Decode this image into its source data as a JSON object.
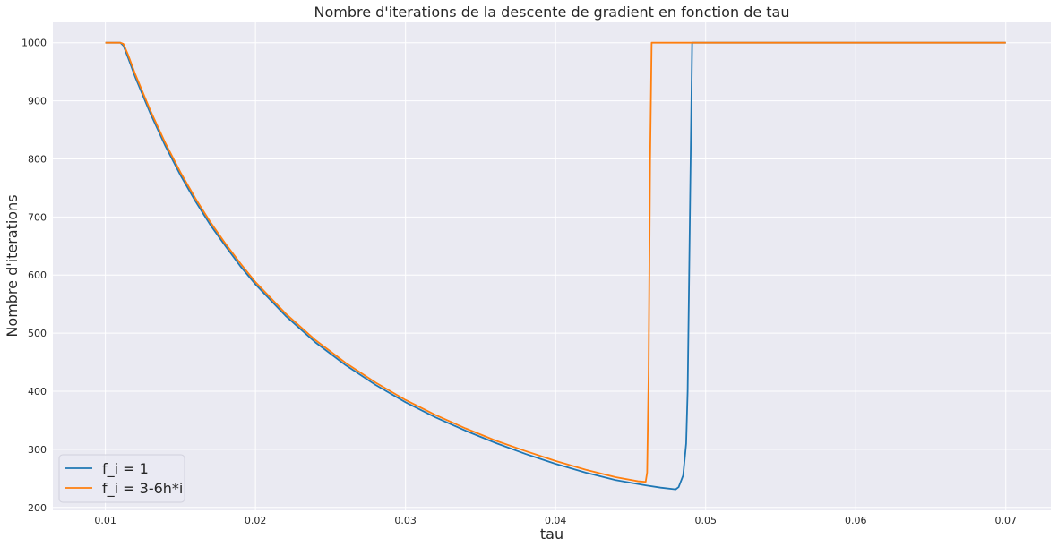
{
  "chart_data": {
    "type": "line",
    "title": "Nombre d'iterations de la descente de gradient en fonction de tau",
    "xlabel": "tau",
    "ylabel": "Nombre d'iterations",
    "xlim": [
      0.0065,
      0.073
    ],
    "ylim": [
      195,
      1035
    ],
    "xticks": [
      0.01,
      0.02,
      0.03,
      0.04,
      0.05,
      0.06,
      0.07
    ],
    "xtick_labels": [
      "0.01",
      "0.02",
      "0.03",
      "0.04",
      "0.05",
      "0.06",
      "0.07"
    ],
    "yticks": [
      200,
      300,
      400,
      500,
      600,
      700,
      800,
      900,
      1000
    ],
    "ytick_labels": [
      "200",
      "300",
      "400",
      "500",
      "600",
      "700",
      "800",
      "900",
      "1000"
    ],
    "grid": true,
    "background": "#eaeaf2",
    "grid_color": "#ffffff",
    "legend_position": "lower-left",
    "series": [
      {
        "name": "f_i = 1",
        "color": "#1f77b4",
        "x": [
          0.01,
          0.0105,
          0.011,
          0.0112,
          0.0115,
          0.012,
          0.013,
          0.014,
          0.015,
          0.016,
          0.017,
          0.018,
          0.019,
          0.02,
          0.022,
          0.024,
          0.026,
          0.028,
          0.03,
          0.032,
          0.034,
          0.036,
          0.038,
          0.04,
          0.042,
          0.044,
          0.046,
          0.047,
          0.048,
          0.0482,
          0.0485,
          0.0487,
          0.0488,
          0.0489,
          0.049,
          0.0491,
          0.05,
          0.06,
          0.07
        ],
        "y": [
          1000,
          1000,
          1000,
          995,
          975,
          940,
          878,
          822,
          772,
          727,
          686,
          650,
          615,
          584,
          530,
          484,
          445,
          411,
          381,
          355,
          332,
          311,
          292,
          275,
          260,
          247,
          238,
          234,
          231,
          235,
          255,
          310,
          400,
          600,
          800,
          1000,
          1000,
          1000,
          1000
        ]
      },
      {
        "name": "f_i = 3-6h*i",
        "color": "#ff7f0e",
        "x": [
          0.01,
          0.0105,
          0.011,
          0.0112,
          0.0115,
          0.012,
          0.013,
          0.014,
          0.015,
          0.016,
          0.017,
          0.018,
          0.019,
          0.02,
          0.022,
          0.024,
          0.026,
          0.028,
          0.03,
          0.032,
          0.034,
          0.036,
          0.038,
          0.04,
          0.042,
          0.044,
          0.0455,
          0.046,
          0.0461,
          0.0462,
          0.0463,
          0.0464,
          0.047,
          0.05,
          0.06,
          0.07
        ],
        "y": [
          1000,
          1000,
          1000,
          998,
          980,
          945,
          883,
          827,
          777,
          732,
          691,
          654,
          620,
          588,
          534,
          488,
          449,
          415,
          385,
          359,
          336,
          315,
          297,
          280,
          265,
          252,
          245,
          244,
          260,
          430,
          800,
          1000,
          1000,
          1000,
          1000,
          1000
        ]
      }
    ]
  }
}
